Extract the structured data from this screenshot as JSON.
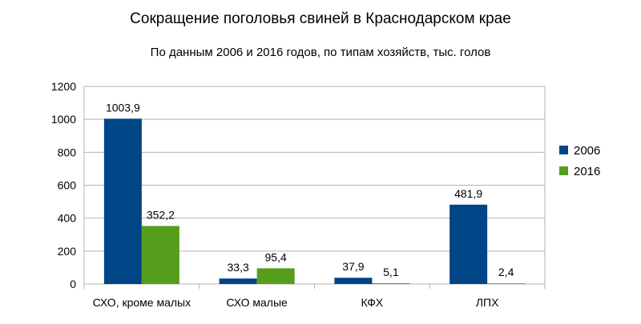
{
  "chart_data": {
    "type": "bar",
    "title": "Сокращение поголовья свиней в Краснодарском крае",
    "subtitle": "По данным 2006 и 2016 годов, по типам хозяйств, тыс. голов",
    "xlabel": "",
    "ylabel": "",
    "categories": [
      "СХО, кроме малых",
      "СХО малые",
      "КФХ",
      "ЛПХ"
    ],
    "series": [
      {
        "name": "2006",
        "color": "#004586",
        "values": [
          1003.9,
          33.3,
          37.9,
          481.9
        ],
        "labels": [
          "1003,9",
          "33,3",
          "37,9",
          "481,9"
        ]
      },
      {
        "name": "2016",
        "color": "#579d1c",
        "values": [
          352.2,
          95.4,
          5.1,
          2.4
        ],
        "labels": [
          "352,2",
          "95,4",
          "5,1",
          "2,4"
        ]
      }
    ],
    "ylim": [
      0,
      1200
    ],
    "yticks": [
      0,
      200,
      400,
      600,
      800,
      1000,
      1200
    ],
    "yticklabels": [
      "0",
      "200",
      "400",
      "600",
      "800",
      "1000",
      "1200"
    ],
    "grid": true,
    "legend_position": "right"
  }
}
